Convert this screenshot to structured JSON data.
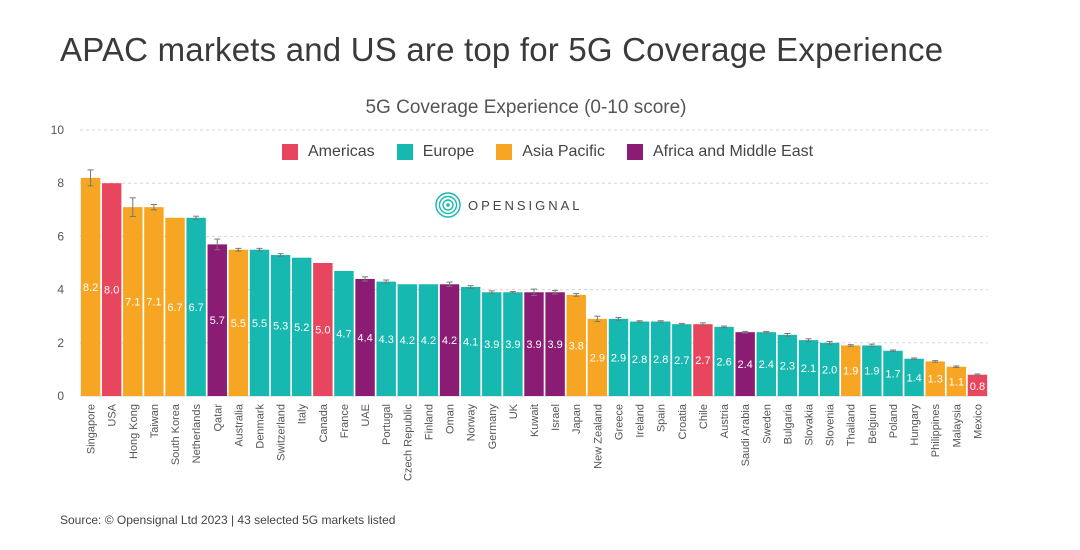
{
  "headline": "APAC markets and US are top for 5G Coverage Experience",
  "source": "Source: © Opensignal Ltd 2023 | 43 selected 5G markets listed",
  "logo_text": "OPENSIGNAL",
  "colors": {
    "Americas": "#e8455e",
    "Europe": "#16b8b0",
    "Asia Pacific": "#f6a623",
    "Africa and Middle East": "#8b1c74"
  },
  "legend": [
    {
      "label": "Americas",
      "region": "Americas"
    },
    {
      "label": "Europe",
      "region": "Europe"
    },
    {
      "label": "Asia Pacific",
      "region": "Asia Pacific"
    },
    {
      "label": "Africa and Middle East",
      "region": "Africa and Middle East"
    }
  ],
  "chart_data": {
    "type": "bar",
    "title": "5G Coverage Experience (0-10 score)",
    "ylim": [
      0,
      10
    ],
    "yticks": [
      0,
      2,
      4,
      6,
      8,
      10
    ],
    "grid": true,
    "legend_position": "top",
    "error_bars": true,
    "categories": [
      "Singapore",
      "USA",
      "Hong Kong",
      "Taiwan",
      "South Korea",
      "Netherlands",
      "Qatar",
      "Australia",
      "Denmark",
      "Switzerland",
      "Italy",
      "Canada",
      "France",
      "UAE",
      "Portugal",
      "Czech Republic",
      "Finland",
      "Oman",
      "Norway",
      "Germany",
      "UK",
      "Kuwait",
      "Israel",
      "Japan",
      "New Zealand",
      "Greece",
      "Ireland",
      "Spain",
      "Croatia",
      "Chile",
      "Austria",
      "Saudi Arabia",
      "Sweden",
      "Bulgaria",
      "Slovakia",
      "Slovenia",
      "Thailand",
      "Belgium",
      "Poland",
      "Hungary",
      "Philippines",
      "Malaysia",
      "Mexico"
    ],
    "values": [
      8.2,
      8.0,
      7.1,
      7.1,
      6.7,
      6.7,
      5.7,
      5.5,
      5.5,
      5.3,
      5.2,
      5.0,
      4.7,
      4.4,
      4.3,
      4.2,
      4.2,
      4.2,
      4.1,
      3.9,
      3.9,
      3.9,
      3.9,
      3.8,
      2.9,
      2.9,
      2.8,
      2.8,
      2.7,
      2.7,
      2.6,
      2.4,
      2.4,
      2.3,
      2.1,
      2.0,
      1.9,
      1.9,
      1.7,
      1.4,
      1.3,
      1.1,
      0.8
    ],
    "labels": [
      "8.2",
      "8.0",
      "7.1",
      "7.1",
      "6.7",
      "6.7",
      "5.7",
      "5.5",
      "5.5",
      "5.3",
      "5.2",
      "5.0",
      "4.7",
      "4.4",
      "4.3",
      "4.2",
      "4.2",
      "4.2",
      "4.1",
      "3.9",
      "3.9",
      "3.9",
      "3.9",
      "3.8",
      "2.9",
      "2.9",
      "2.8",
      "2.8",
      "2.7",
      "2.7",
      "2.6",
      "2.4",
      "2.4",
      "2.3",
      "2.1",
      "2.0",
      "1.9",
      "1.9",
      "1.7",
      "1.4",
      "1.3",
      "1.1",
      "0.8"
    ],
    "error": [
      0.3,
      0,
      0.35,
      0.1,
      0,
      0.06,
      0.2,
      0.05,
      0.05,
      0.05,
      0,
      0,
      0,
      0.08,
      0.06,
      0,
      0,
      0.08,
      0.05,
      0.05,
      0.03,
      0.12,
      0.07,
      0.05,
      0.1,
      0.05,
      0.03,
      0.03,
      0.03,
      0.05,
      0.03,
      0.03,
      0.03,
      0.05,
      0.05,
      0.05,
      0.03,
      0.05,
      0.03,
      0.03,
      0.03,
      0.03,
      0.03
    ],
    "regions": [
      "Asia Pacific",
      "Americas",
      "Asia Pacific",
      "Asia Pacific",
      "Asia Pacific",
      "Europe",
      "Africa and Middle East",
      "Asia Pacific",
      "Europe",
      "Europe",
      "Europe",
      "Americas",
      "Europe",
      "Africa and Middle East",
      "Europe",
      "Europe",
      "Europe",
      "Africa and Middle East",
      "Europe",
      "Europe",
      "Europe",
      "Africa and Middle East",
      "Africa and Middle East",
      "Asia Pacific",
      "Asia Pacific",
      "Europe",
      "Europe",
      "Europe",
      "Europe",
      "Americas",
      "Europe",
      "Africa and Middle East",
      "Europe",
      "Europe",
      "Europe",
      "Europe",
      "Asia Pacific",
      "Europe",
      "Europe",
      "Europe",
      "Asia Pacific",
      "Asia Pacific",
      "Americas"
    ]
  }
}
